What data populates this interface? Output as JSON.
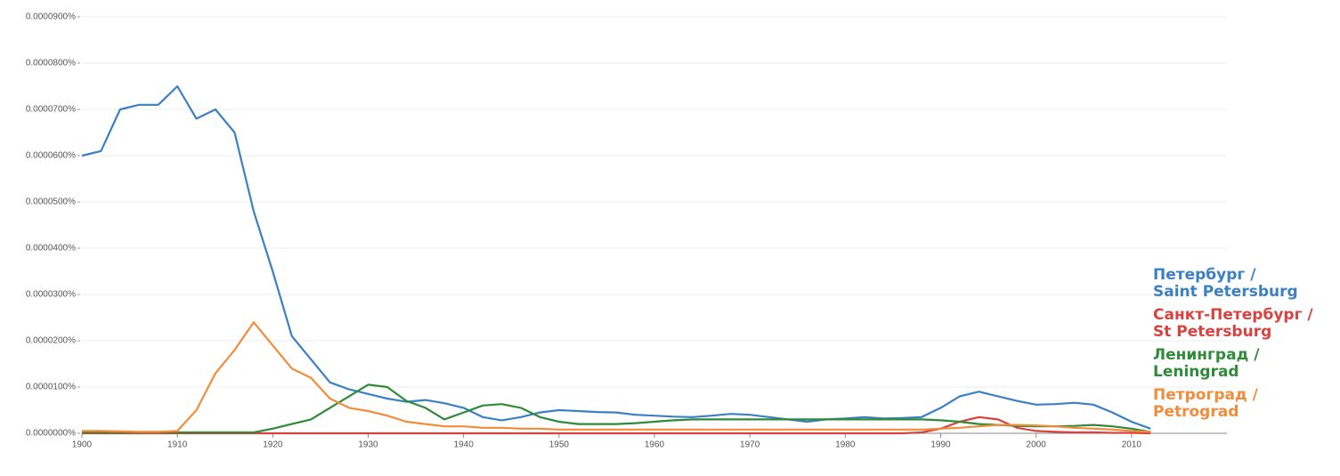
{
  "chart_data": {
    "type": "line",
    "x": [
      1900,
      1902,
      1904,
      1906,
      1908,
      1910,
      1912,
      1914,
      1916,
      1918,
      1920,
      1922,
      1924,
      1926,
      1928,
      1930,
      1932,
      1934,
      1936,
      1938,
      1940,
      1942,
      1944,
      1946,
      1948,
      1950,
      1952,
      1954,
      1956,
      1958,
      1960,
      1962,
      1964,
      1966,
      1968,
      1970,
      1972,
      1974,
      1976,
      1978,
      1980,
      1982,
      1984,
      1986,
      1988,
      1990,
      1992,
      1994,
      1996,
      1998,
      2000,
      2002,
      2004,
      2006,
      2008,
      2010,
      2012
    ],
    "series": [
      {
        "name": "Петербург /\nSaint Petersburg",
        "color": "#3b7fc4",
        "values": [
          6e-05,
          6.1e-05,
          7e-05,
          7.1e-05,
          7.1e-05,
          7.5e-05,
          6.8e-05,
          7e-05,
          6.5e-05,
          4.8e-05,
          3.5e-05,
          2.1e-05,
          1.6e-05,
          1.1e-05,
          9.5e-06,
          8.5e-06,
          7.5e-06,
          6.8e-06,
          7.2e-06,
          6.5e-06,
          5.5e-06,
          3.5e-06,
          2.8e-06,
          3.5e-06,
          4.5e-06,
          5e-06,
          4.8e-06,
          4.6e-06,
          4.5e-06,
          4e-06,
          3.8e-06,
          3.6e-06,
          3.5e-06,
          3.8e-06,
          4.2e-06,
          4e-06,
          3.5e-06,
          3e-06,
          2.5e-06,
          3e-06,
          3.2e-06,
          3.5e-06,
          3.2e-06,
          3.3e-06,
          3.5e-06,
          5.5e-06,
          8e-06,
          9e-06,
          8e-06,
          7e-06,
          6.2e-06,
          6.3e-06,
          6.6e-06,
          6.2e-06,
          4.5e-06,
          2.5e-06,
          1e-06
        ]
      },
      {
        "name": "Санкт-Петербург /\nSt Petersburg",
        "color": "#d9423f",
        "values": [
          0,
          0,
          0,
          0,
          0,
          0,
          0,
          0,
          0,
          0,
          0,
          0,
          0,
          0,
          0,
          0,
          0,
          0,
          0,
          0,
          0,
          0,
          0,
          0,
          0,
          0,
          0,
          0,
          0,
          0,
          0,
          0,
          0,
          0,
          0,
          0,
          0,
          0,
          0,
          0,
          0,
          0,
          0,
          0,
          2e-07,
          1e-06,
          2.5e-06,
          3.5e-06,
          3e-06,
          1.2e-06,
          5e-07,
          3e-07,
          2e-07,
          2e-07,
          1e-07,
          1e-07,
          0
        ]
      },
      {
        "name": "Ленинград /\nLeningrad",
        "color": "#2f8a3a",
        "values": [
          2e-07,
          2e-07,
          2e-07,
          2e-07,
          2e-07,
          2e-07,
          2e-07,
          2e-07,
          2e-07,
          2e-07,
          1e-06,
          2e-06,
          3e-06,
          5.5e-06,
          8e-06,
          1.05e-05,
          1e-05,
          7e-06,
          5.5e-06,
          3e-06,
          4.5e-06,
          6e-06,
          6.3e-06,
          5.5e-06,
          3.5e-06,
          2.5e-06,
          2e-06,
          2e-06,
          2e-06,
          2.2e-06,
          2.5e-06,
          2.8e-06,
          3e-06,
          3e-06,
          3e-06,
          3e-06,
          3e-06,
          3e-06,
          3e-06,
          3e-06,
          3e-06,
          3e-06,
          3e-06,
          3e-06,
          3e-06,
          2.8e-06,
          2.5e-06,
          2e-06,
          1.8e-06,
          1.6e-06,
          1.5e-06,
          1.5e-06,
          1.6e-06,
          1.8e-06,
          1.5e-06,
          1e-06,
          3e-07
        ]
      },
      {
        "name": "Петроград /\nPetrograd",
        "color": "#f28c3a",
        "values": [
          5e-07,
          5e-07,
          4e-07,
          3e-07,
          3e-07,
          5e-07,
          5e-06,
          1.3e-05,
          1.8e-05,
          2.4e-05,
          1.9e-05,
          1.4e-05,
          1.2e-05,
          7.5e-06,
          5.5e-06,
          4.8e-06,
          3.8e-06,
          2.5e-06,
          2e-06,
          1.5e-06,
          1.5e-06,
          1.2e-06,
          1.2e-06,
          1e-06,
          1e-06,
          8e-07,
          8e-07,
          8e-07,
          8e-07,
          8e-07,
          8e-07,
          8e-07,
          8e-07,
          8e-07,
          8e-07,
          8e-07,
          8e-07,
          8e-07,
          8e-07,
          8e-07,
          8e-07,
          8e-07,
          8e-07,
          8e-07,
          8e-07,
          1e-06,
          1.2e-06,
          1.5e-06,
          1.8e-06,
          1.8e-06,
          1.7e-06,
          1.5e-06,
          1.2e-06,
          1e-06,
          8e-07,
          5e-07,
          3e-07
        ]
      }
    ],
    "xlim": [
      1900,
      2020
    ],
    "xticks": [
      1900,
      1910,
      1920,
      1930,
      1940,
      1950,
      1960,
      1970,
      1980,
      1990,
      2000,
      2010
    ],
    "ylim": [
      0,
      9e-05
    ],
    "yticks": [
      {
        "value": 0,
        "label": "0.0000000%"
      },
      {
        "value": 1e-05,
        "label": "0.0000100%"
      },
      {
        "value": 2e-05,
        "label": "0.0000200%"
      },
      {
        "value": 3e-05,
        "label": "0.0000300%"
      },
      {
        "value": 4e-05,
        "label": "0.0000400%"
      },
      {
        "value": 5e-05,
        "label": "0.0000500%"
      },
      {
        "value": 6e-05,
        "label": "0.0000600%"
      },
      {
        "value": 7e-05,
        "label": "0.0000700%"
      },
      {
        "value": 8e-05,
        "label": "0.0000800%"
      },
      {
        "value": 9e-05,
        "label": "0.0000900%"
      }
    ],
    "grid": true
  }
}
